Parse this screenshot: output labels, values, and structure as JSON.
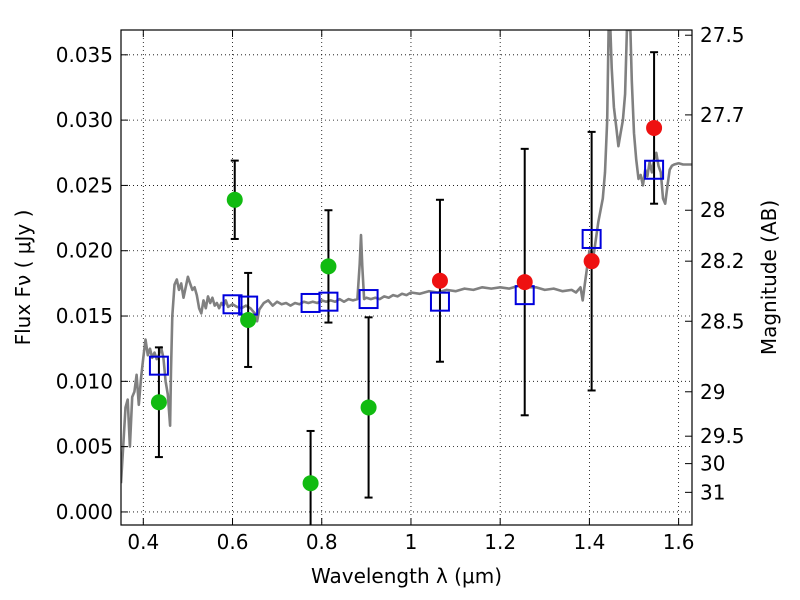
{
  "chart_data": {
    "type": "scatter",
    "xlabel": "Wavelength  λ (μm)",
    "ylabel": "Flux  Fν  ( μJy )",
    "y2label": "Magnitude (AB)",
    "xlim": [
      0.35,
      1.63
    ],
    "ylim": [
      -0.001,
      0.0369
    ],
    "x_ticks": [
      0.4,
      0.6,
      0.8,
      1.0,
      1.2,
      1.4,
      1.6
    ],
    "x_tick_labels": [
      "0.4",
      "0.6",
      "0.8",
      "1",
      "1.2",
      "1.4",
      "1.6"
    ],
    "y_ticks": [
      0.0,
      0.005,
      0.01,
      0.015,
      0.02,
      0.025,
      0.03,
      0.035
    ],
    "y_tick_labels": [
      "0.000",
      "0.005",
      "0.010",
      "0.015",
      "0.020",
      "0.025",
      "0.030",
      "0.035"
    ],
    "y2_ticks": [
      {
        "label": "27.5",
        "flux": 0.0365
      },
      {
        "label": "27.7",
        "flux": 0.0304
      },
      {
        "label": "28",
        "flux": 0.0231
      },
      {
        "label": "28.2",
        "flux": 0.0192
      },
      {
        "label": "28.5",
        "flux": 0.0146
      },
      {
        "label": "29",
        "flux": 0.0092
      },
      {
        "label": "29.5",
        "flux": 0.0058
      },
      {
        "label": "30",
        "flux": 0.0037
      },
      {
        "label": "31",
        "flux": 0.0015
      }
    ],
    "grid": true,
    "colors": {
      "green": "#11bb11",
      "red": "#ee1111",
      "blue_square": "#0000dd",
      "spectrum": "#808080",
      "errorbar": "#000000"
    },
    "series": [
      {
        "marker": "circle",
        "color": "green",
        "points": [
          {
            "x": 0.435,
            "y": 0.0084,
            "err": 0.0042
          },
          {
            "x": 0.605,
            "y": 0.0239,
            "err": 0.003
          },
          {
            "x": 0.635,
            "y": 0.0147,
            "err": 0.0036
          },
          {
            "x": 0.775,
            "y": 0.0022,
            "err": 0.004
          },
          {
            "x": 0.815,
            "y": 0.0188,
            "err": 0.0043
          },
          {
            "x": 0.905,
            "y": 0.008,
            "err": 0.0069
          }
        ]
      },
      {
        "marker": "circle",
        "color": "red",
        "points": [
          {
            "x": 1.065,
            "y": 0.0177,
            "err": 0.0062
          },
          {
            "x": 1.255,
            "y": 0.0176,
            "err": 0.0102
          },
          {
            "x": 1.405,
            "y": 0.0192,
            "err": 0.0099
          },
          {
            "x": 1.545,
            "y": 0.0294,
            "err": 0.0058
          }
        ]
      },
      {
        "marker": "square",
        "color": "blue_square",
        "points": [
          {
            "x": 0.435,
            "y": 0.0112
          },
          {
            "x": 0.6,
            "y": 0.0159
          },
          {
            "x": 0.635,
            "y": 0.0158
          },
          {
            "x": 0.775,
            "y": 0.016
          },
          {
            "x": 0.815,
            "y": 0.0161
          },
          {
            "x": 0.905,
            "y": 0.0163
          },
          {
            "x": 1.065,
            "y": 0.0161
          },
          {
            "x": 1.255,
            "y": 0.0166
          },
          {
            "x": 1.405,
            "y": 0.0209
          },
          {
            "x": 1.545,
            "y": 0.0262
          }
        ]
      }
    ],
    "spectrum": [
      [
        0.35,
        0.0022
      ],
      [
        0.355,
        0.005
      ],
      [
        0.36,
        0.008
      ],
      [
        0.365,
        0.0086
      ],
      [
        0.37,
        0.005
      ],
      [
        0.375,
        0.0088
      ],
      [
        0.38,
        0.0092
      ],
      [
        0.385,
        0.0105
      ],
      [
        0.39,
        0.0082
      ],
      [
        0.395,
        0.0103
      ],
      [
        0.4,
        0.0118
      ],
      [
        0.405,
        0.0132
      ],
      [
        0.41,
        0.012
      ],
      [
        0.415,
        0.0125
      ],
      [
        0.42,
        0.0118
      ],
      [
        0.425,
        0.0122
      ],
      [
        0.43,
        0.0117
      ],
      [
        0.435,
        0.012
      ],
      [
        0.44,
        0.0126
      ],
      [
        0.445,
        0.0118
      ],
      [
        0.45,
        0.01
      ],
      [
        0.455,
        0.009
      ],
      [
        0.46,
        0.0066
      ],
      [
        0.462,
        0.0108
      ],
      [
        0.465,
        0.015
      ],
      [
        0.47,
        0.0174
      ],
      [
        0.475,
        0.0178
      ],
      [
        0.48,
        0.017
      ],
      [
        0.485,
        0.0175
      ],
      [
        0.49,
        0.0164
      ],
      [
        0.495,
        0.0172
      ],
      [
        0.5,
        0.018
      ],
      [
        0.505,
        0.0175
      ],
      [
        0.51,
        0.017
      ],
      [
        0.515,
        0.0172
      ],
      [
        0.52,
        0.0166
      ],
      [
        0.525,
        0.0156
      ],
      [
        0.53,
        0.0152
      ],
      [
        0.535,
        0.0162
      ],
      [
        0.54,
        0.0156
      ],
      [
        0.545,
        0.0165
      ],
      [
        0.55,
        0.016
      ],
      [
        0.555,
        0.0164
      ],
      [
        0.56,
        0.0158
      ],
      [
        0.565,
        0.016
      ],
      [
        0.57,
        0.0156
      ],
      [
        0.575,
        0.016
      ],
      [
        0.58,
        0.0158
      ],
      [
        0.585,
        0.0162
      ],
      [
        0.59,
        0.0157
      ],
      [
        0.6,
        0.0159
      ],
      [
        0.61,
        0.0157
      ],
      [
        0.62,
        0.0156
      ],
      [
        0.63,
        0.0158
      ],
      [
        0.64,
        0.0156
      ],
      [
        0.65,
        0.0152
      ],
      [
        0.655,
        0.0146
      ],
      [
        0.66,
        0.0155
      ],
      [
        0.67,
        0.016
      ],
      [
        0.68,
        0.0162
      ],
      [
        0.69,
        0.0158
      ],
      [
        0.7,
        0.0161
      ],
      [
        0.71,
        0.0159
      ],
      [
        0.72,
        0.016
      ],
      [
        0.73,
        0.0158
      ],
      [
        0.74,
        0.016
      ],
      [
        0.75,
        0.0159
      ],
      [
        0.76,
        0.0161
      ],
      [
        0.77,
        0.016
      ],
      [
        0.78,
        0.0161
      ],
      [
        0.79,
        0.016
      ],
      [
        0.8,
        0.0162
      ],
      [
        0.81,
        0.0161
      ],
      [
        0.82,
        0.0162
      ],
      [
        0.83,
        0.0161
      ],
      [
        0.84,
        0.0163
      ],
      [
        0.85,
        0.0161
      ],
      [
        0.86,
        0.0163
      ],
      [
        0.87,
        0.0162
      ],
      [
        0.88,
        0.0163
      ],
      [
        0.885,
        0.019
      ],
      [
        0.888,
        0.0212
      ],
      [
        0.891,
        0.0188
      ],
      [
        0.895,
        0.0163
      ],
      [
        0.9,
        0.0164
      ],
      [
        0.91,
        0.0163
      ],
      [
        0.92,
        0.0164
      ],
      [
        0.93,
        0.0163
      ],
      [
        0.94,
        0.0165
      ],
      [
        0.95,
        0.0164
      ],
      [
        0.96,
        0.0166
      ],
      [
        0.97,
        0.0165
      ],
      [
        0.98,
        0.0167
      ],
      [
        0.99,
        0.0166
      ],
      [
        1.0,
        0.0168
      ],
      [
        1.02,
        0.0167
      ],
      [
        1.04,
        0.0169
      ],
      [
        1.06,
        0.0168
      ],
      [
        1.08,
        0.017
      ],
      [
        1.1,
        0.0169
      ],
      [
        1.12,
        0.0171
      ],
      [
        1.14,
        0.017
      ],
      [
        1.16,
        0.0172
      ],
      [
        1.18,
        0.0171
      ],
      [
        1.2,
        0.0172
      ],
      [
        1.22,
        0.0171
      ],
      [
        1.24,
        0.0173
      ],
      [
        1.26,
        0.0172
      ],
      [
        1.28,
        0.0172
      ],
      [
        1.3,
        0.017
      ],
      [
        1.32,
        0.0171
      ],
      [
        1.34,
        0.0169
      ],
      [
        1.36,
        0.017
      ],
      [
        1.37,
        0.0168
      ],
      [
        1.38,
        0.0172
      ],
      [
        1.385,
        0.0162
      ],
      [
        1.39,
        0.0175
      ],
      [
        1.4,
        0.02
      ],
      [
        1.41,
        0.0198
      ],
      [
        1.42,
        0.0222
      ],
      [
        1.43,
        0.024
      ],
      [
        1.435,
        0.026
      ],
      [
        1.44,
        0.03
      ],
      [
        1.443,
        0.0369
      ],
      [
        1.447,
        0.0369
      ],
      [
        1.45,
        0.034
      ],
      [
        1.455,
        0.031
      ],
      [
        1.46,
        0.0295
      ],
      [
        1.465,
        0.028
      ],
      [
        1.47,
        0.029
      ],
      [
        1.475,
        0.03
      ],
      [
        1.48,
        0.032
      ],
      [
        1.484,
        0.0369
      ],
      [
        1.492,
        0.0369
      ],
      [
        1.495,
        0.033
      ],
      [
        1.5,
        0.029
      ],
      [
        1.505,
        0.027
      ],
      [
        1.51,
        0.0255
      ],
      [
        1.515,
        0.0258
      ],
      [
        1.52,
        0.025
      ],
      [
        1.525,
        0.0262
      ],
      [
        1.53,
        0.0257
      ],
      [
        1.535,
        0.0268
      ],
      [
        1.54,
        0.026
      ],
      [
        1.545,
        0.027
      ],
      [
        1.55,
        0.0275
      ],
      [
        1.555,
        0.0265
      ],
      [
        1.56,
        0.026
      ],
      [
        1.565,
        0.024
      ],
      [
        1.57,
        0.0236
      ],
      [
        1.575,
        0.025
      ],
      [
        1.58,
        0.0262
      ],
      [
        1.585,
        0.0265
      ],
      [
        1.59,
        0.0266
      ],
      [
        1.6,
        0.0267
      ],
      [
        1.61,
        0.0266
      ],
      [
        1.62,
        0.0266
      ],
      [
        1.63,
        0.0266
      ]
    ]
  }
}
